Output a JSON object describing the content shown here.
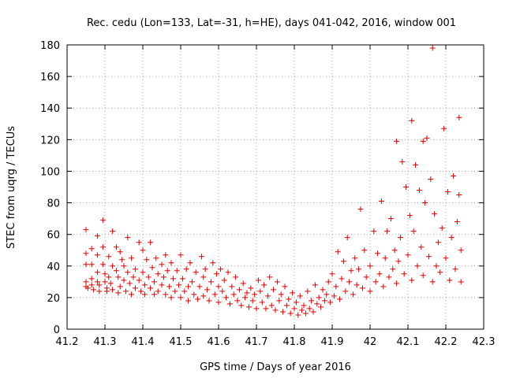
{
  "chart_data": {
    "type": "scatter",
    "title": "Rec. cedu (Lon=133, Lat=-31, h=HE), days 041-042, 2016, window 001",
    "xlabel": "GPS time / Days of year 2016",
    "ylabel": "STEC from uqrg / TECUs",
    "xlim": [
      41.2,
      42.3
    ],
    "ylim": [
      0,
      180
    ],
    "xticks": [
      "41.2",
      "41.3",
      "41.4",
      "41.5",
      "41.6",
      "41.7",
      "41.8",
      "41.9",
      "42",
      "42.1",
      "42.2",
      "42.3"
    ],
    "yticks": [
      "0",
      "20",
      "40",
      "60",
      "80",
      "100",
      "120",
      "140",
      "160",
      "180"
    ],
    "grid": true,
    "marker": "+",
    "color": "#dd0000",
    "series": [
      {
        "points": [
          [
            41.25,
            63
          ],
          [
            41.25,
            48
          ],
          [
            41.25,
            41
          ],
          [
            41.25,
            30
          ],
          [
            41.25,
            27
          ],
          [
            41.255,
            26
          ],
          [
            41.265,
            51
          ],
          [
            41.265,
            41
          ],
          [
            41.265,
            32
          ],
          [
            41.265,
            28
          ],
          [
            41.27,
            25
          ],
          [
            41.28,
            59
          ],
          [
            41.28,
            47
          ],
          [
            41.28,
            36
          ],
          [
            41.28,
            30
          ],
          [
            41.285,
            28
          ],
          [
            41.285,
            24
          ],
          [
            41.295,
            69
          ],
          [
            41.295,
            52
          ],
          [
            41.295,
            41
          ],
          [
            41.3,
            35
          ],
          [
            41.3,
            30
          ],
          [
            41.305,
            26
          ],
          [
            41.305,
            24
          ],
          [
            41.31,
            46
          ],
          [
            41.31,
            33
          ],
          [
            41.315,
            29
          ],
          [
            41.32,
            62
          ],
          [
            41.32,
            40
          ],
          [
            41.32,
            25
          ],
          [
            41.33,
            52
          ],
          [
            41.33,
            37
          ],
          [
            41.335,
            33
          ],
          [
            41.335,
            23
          ],
          [
            41.34,
            49
          ],
          [
            41.34,
            27
          ],
          [
            41.345,
            44
          ],
          [
            41.35,
            40
          ],
          [
            41.35,
            31
          ],
          [
            41.355,
            24
          ],
          [
            41.36,
            58
          ],
          [
            41.36,
            36
          ],
          [
            41.365,
            29
          ],
          [
            41.37,
            45
          ],
          [
            41.37,
            22
          ],
          [
            41.375,
            33
          ],
          [
            41.38,
            38
          ],
          [
            41.38,
            26
          ],
          [
            41.39,
            55
          ],
          [
            41.39,
            31
          ],
          [
            41.395,
            24
          ],
          [
            41.4,
            50
          ],
          [
            41.4,
            36
          ],
          [
            41.405,
            28
          ],
          [
            41.405,
            22
          ],
          [
            41.41,
            44
          ],
          [
            41.415,
            33
          ],
          [
            41.42,
            55
          ],
          [
            41.42,
            26
          ],
          [
            41.425,
            39
          ],
          [
            41.43,
            30
          ],
          [
            41.43,
            22
          ],
          [
            41.435,
            45
          ],
          [
            41.44,
            35
          ],
          [
            41.44,
            24
          ],
          [
            41.45,
            41
          ],
          [
            41.45,
            28
          ],
          [
            41.455,
            33
          ],
          [
            41.46,
            47
          ],
          [
            41.46,
            22
          ],
          [
            41.465,
            37
          ],
          [
            41.47,
            27
          ],
          [
            41.475,
            42
          ],
          [
            41.475,
            20
          ],
          [
            41.48,
            32
          ],
          [
            41.485,
            24
          ],
          [
            41.49,
            37
          ],
          [
            41.495,
            28
          ],
          [
            41.5,
            47
          ],
          [
            41.5,
            20
          ],
          [
            41.505,
            32
          ],
          [
            41.51,
            24
          ],
          [
            41.515,
            38
          ],
          [
            41.52,
            27
          ],
          [
            41.52,
            18
          ],
          [
            41.525,
            42
          ],
          [
            41.53,
            30
          ],
          [
            41.535,
            22
          ],
          [
            41.54,
            36
          ],
          [
            41.545,
            19
          ],
          [
            41.55,
            27
          ],
          [
            41.555,
            46
          ],
          [
            41.56,
            33
          ],
          [
            41.56,
            21
          ],
          [
            41.565,
            38
          ],
          [
            41.57,
            25
          ],
          [
            41.575,
            18
          ],
          [
            41.58,
            30
          ],
          [
            41.585,
            42
          ],
          [
            41.59,
            22
          ],
          [
            41.595,
            35
          ],
          [
            41.6,
            27
          ],
          [
            41.6,
            17
          ],
          [
            41.605,
            38
          ],
          [
            41.61,
            24
          ],
          [
            41.615,
            31
          ],
          [
            41.62,
            20
          ],
          [
            41.625,
            36
          ],
          [
            41.63,
            16
          ],
          [
            41.635,
            27
          ],
          [
            41.64,
            22
          ],
          [
            41.645,
            33
          ],
          [
            41.65,
            18
          ],
          [
            41.655,
            25
          ],
          [
            41.66,
            15
          ],
          [
            41.665,
            29
          ],
          [
            41.67,
            20
          ],
          [
            41.675,
            23
          ],
          [
            41.68,
            14
          ],
          [
            41.685,
            26
          ],
          [
            41.69,
            18
          ],
          [
            41.695,
            22
          ],
          [
            41.7,
            13
          ],
          [
            41.705,
            31
          ],
          [
            41.71,
            24
          ],
          [
            41.715,
            17
          ],
          [
            41.72,
            28
          ],
          [
            41.725,
            13
          ],
          [
            41.73,
            21
          ],
          [
            41.735,
            33
          ],
          [
            41.74,
            15
          ],
          [
            41.745,
            25
          ],
          [
            41.75,
            12
          ],
          [
            41.755,
            30
          ],
          [
            41.76,
            18
          ],
          [
            41.765,
            22
          ],
          [
            41.77,
            11
          ],
          [
            41.775,
            27
          ],
          [
            41.78,
            15
          ],
          [
            41.785,
            19
          ],
          [
            41.79,
            10
          ],
          [
            41.795,
            23
          ],
          [
            41.8,
            13
          ],
          [
            41.805,
            17
          ],
          [
            41.81,
            9
          ],
          [
            41.815,
            21
          ],
          [
            41.82,
            12
          ],
          [
            41.825,
            15
          ],
          [
            41.83,
            10
          ],
          [
            41.835,
            24
          ],
          [
            41.84,
            13
          ],
          [
            41.845,
            18
          ],
          [
            41.85,
            11
          ],
          [
            41.855,
            28
          ],
          [
            41.86,
            16
          ],
          [
            41.865,
            20
          ],
          [
            41.87,
            14
          ],
          [
            41.875,
            25
          ],
          [
            41.88,
            18
          ],
          [
            41.885,
            22
          ],
          [
            41.89,
            30
          ],
          [
            41.895,
            17
          ],
          [
            41.9,
            35
          ],
          [
            41.905,
            21
          ],
          [
            41.91,
            27
          ],
          [
            41.915,
            49
          ],
          [
            41.92,
            19
          ],
          [
            41.925,
            32
          ],
          [
            41.93,
            43
          ],
          [
            41.935,
            24
          ],
          [
            41.94,
            58
          ],
          [
            41.945,
            30
          ],
          [
            41.95,
            37
          ],
          [
            41.955,
            22
          ],
          [
            41.96,
            45
          ],
          [
            41.965,
            28
          ],
          [
            41.97,
            38
          ],
          [
            41.975,
            76
          ],
          [
            41.98,
            26
          ],
          [
            41.985,
            50
          ],
          [
            41.99,
            33
          ],
          [
            42,
            40
          ],
          [
            42,
            24
          ],
          [
            42.01,
            62
          ],
          [
            42.015,
            30
          ],
          [
            42.02,
            48
          ],
          [
            42.025,
            35
          ],
          [
            42.03,
            81
          ],
          [
            42.035,
            27
          ],
          [
            42.04,
            45
          ],
          [
            42.045,
            62
          ],
          [
            42.05,
            33
          ],
          [
            42.055,
            70
          ],
          [
            42.06,
            38
          ],
          [
            42.065,
            50
          ],
          [
            42.07,
            119
          ],
          [
            42.07,
            29
          ],
          [
            42.075,
            43
          ],
          [
            42.08,
            58
          ],
          [
            42.085,
            106
          ],
          [
            42.09,
            35
          ],
          [
            42.095,
            90
          ],
          [
            42.1,
            47
          ],
          [
            42.105,
            72
          ],
          [
            42.11,
            132
          ],
          [
            42.11,
            31
          ],
          [
            42.115,
            62
          ],
          [
            42.12,
            104
          ],
          [
            42.125,
            40
          ],
          [
            42.13,
            88
          ],
          [
            42.135,
            52
          ],
          [
            42.14,
            119
          ],
          [
            42.14,
            34
          ],
          [
            42.145,
            80
          ],
          [
            42.15,
            121
          ],
          [
            42.155,
            46
          ],
          [
            42.16,
            95
          ],
          [
            42.165,
            178
          ],
          [
            42.165,
            30
          ],
          [
            42.17,
            73
          ],
          [
            42.175,
            40
          ],
          [
            42.18,
            55
          ],
          [
            42.185,
            36
          ],
          [
            42.19,
            64
          ],
          [
            42.195,
            127
          ],
          [
            42.2,
            45
          ],
          [
            42.205,
            87
          ],
          [
            42.21,
            31
          ],
          [
            42.215,
            58
          ],
          [
            42.22,
            97
          ],
          [
            42.225,
            38
          ],
          [
            42.23,
            68
          ],
          [
            42.235,
            134
          ],
          [
            42.235,
            85
          ],
          [
            42.24,
            50
          ],
          [
            42.24,
            30
          ]
        ]
      }
    ]
  }
}
